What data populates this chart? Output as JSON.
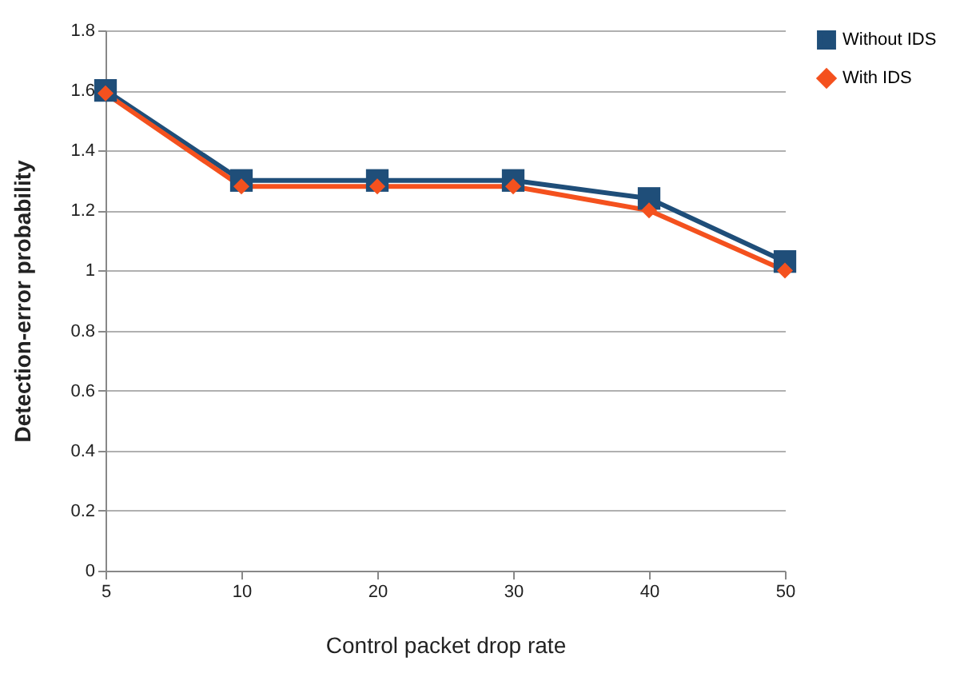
{
  "chart_data": {
    "type": "line",
    "xlabel": "Control packet drop rate",
    "ylabel": "Detection-error probability",
    "categories": [
      "5",
      "10",
      "20",
      "30",
      "40",
      "50"
    ],
    "series": [
      {
        "name": "Without IDS",
        "color": "#1f4e79",
        "marker": "square",
        "values": [
          1.6,
          1.3,
          1.3,
          1.3,
          1.24,
          1.03
        ]
      },
      {
        "name": "With IDS",
        "color": "#f4511e",
        "marker": "diamond",
        "values": [
          1.59,
          1.28,
          1.28,
          1.28,
          1.2,
          1.0
        ]
      }
    ],
    "ylim": [
      0,
      1.8
    ],
    "yticks": [
      0,
      0.2,
      0.4,
      0.6,
      0.8,
      1,
      1.2,
      1.4,
      1.6,
      1.8
    ],
    "grid": "y",
    "legend": "right",
    "line_style": "solid"
  }
}
